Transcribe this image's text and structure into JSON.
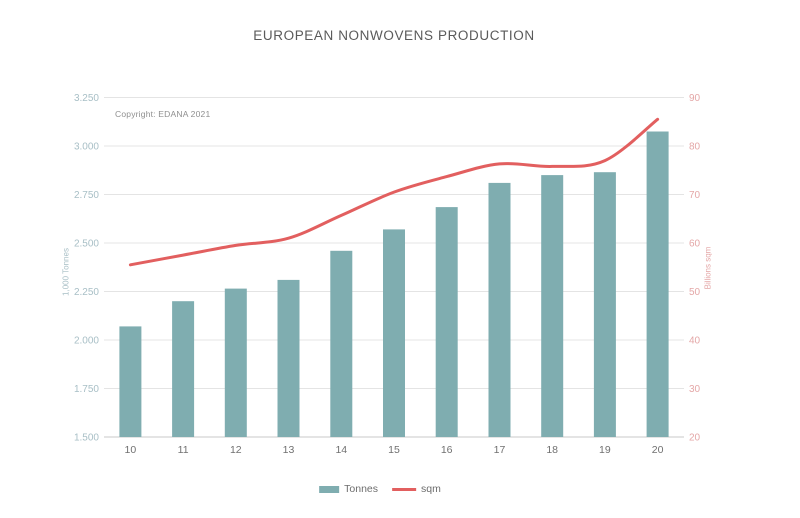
{
  "title": "EUROPEAN NONWOVENS PRODUCTION",
  "copyright": "Copyright: EDANA 2021",
  "colors": {
    "bar": "#7fadb0",
    "line": "#e25f5f",
    "title_text": "#5a5a5a",
    "left_axis_text": "#a8bfc6",
    "right_axis_text": "#e4a7a7",
    "x_axis_text": "#707070",
    "gridline": "#e4e4e4",
    "axis_line": "#c9c9c9"
  },
  "legend": {
    "items": [
      {
        "label": "Tonnes",
        "swatch": "bar-swatch"
      },
      {
        "label": "sqm",
        "swatch": "line-swatch"
      }
    ]
  },
  "chart_data": {
    "type": "bar",
    "combo": "bar+line",
    "title": "EUROPEAN NONWOVENS PRODUCTION",
    "annotation": "Copyright: EDANA 2021",
    "categories": [
      "10",
      "11",
      "12",
      "13",
      "14",
      "15",
      "16",
      "17",
      "18",
      "19",
      "20"
    ],
    "series": [
      {
        "name": "Tonnes",
        "type": "bar",
        "axis": "left",
        "color": "#7fadb0",
        "values": [
          2070,
          2200,
          2265,
          2310,
          2460,
          2570,
          2685,
          2810,
          2850,
          2865,
          3075
        ]
      },
      {
        "name": "sqm",
        "type": "line",
        "axis": "right",
        "color": "#e25f5f",
        "values": [
          55.5,
          57.5,
          59.5,
          61.0,
          65.7,
          70.5,
          73.7,
          76.3,
          75.8,
          77.0,
          85.5
        ]
      }
    ],
    "left_axis": {
      "label": "1,000 Tonnes",
      "min": 1500,
      "max": 3250,
      "step": 250,
      "tick_labels": [
        "1.500",
        "1.750",
        "2.000",
        "2.250",
        "2.500",
        "2.750",
        "3.000",
        "3.250"
      ]
    },
    "right_axis": {
      "label": "Billions sqm",
      "min": 20,
      "max": 90,
      "step": 10,
      "tick_labels": [
        "20",
        "30",
        "40",
        "50",
        "60",
        "70",
        "80",
        "90"
      ]
    },
    "grid": true,
    "legend_position": "bottom"
  }
}
